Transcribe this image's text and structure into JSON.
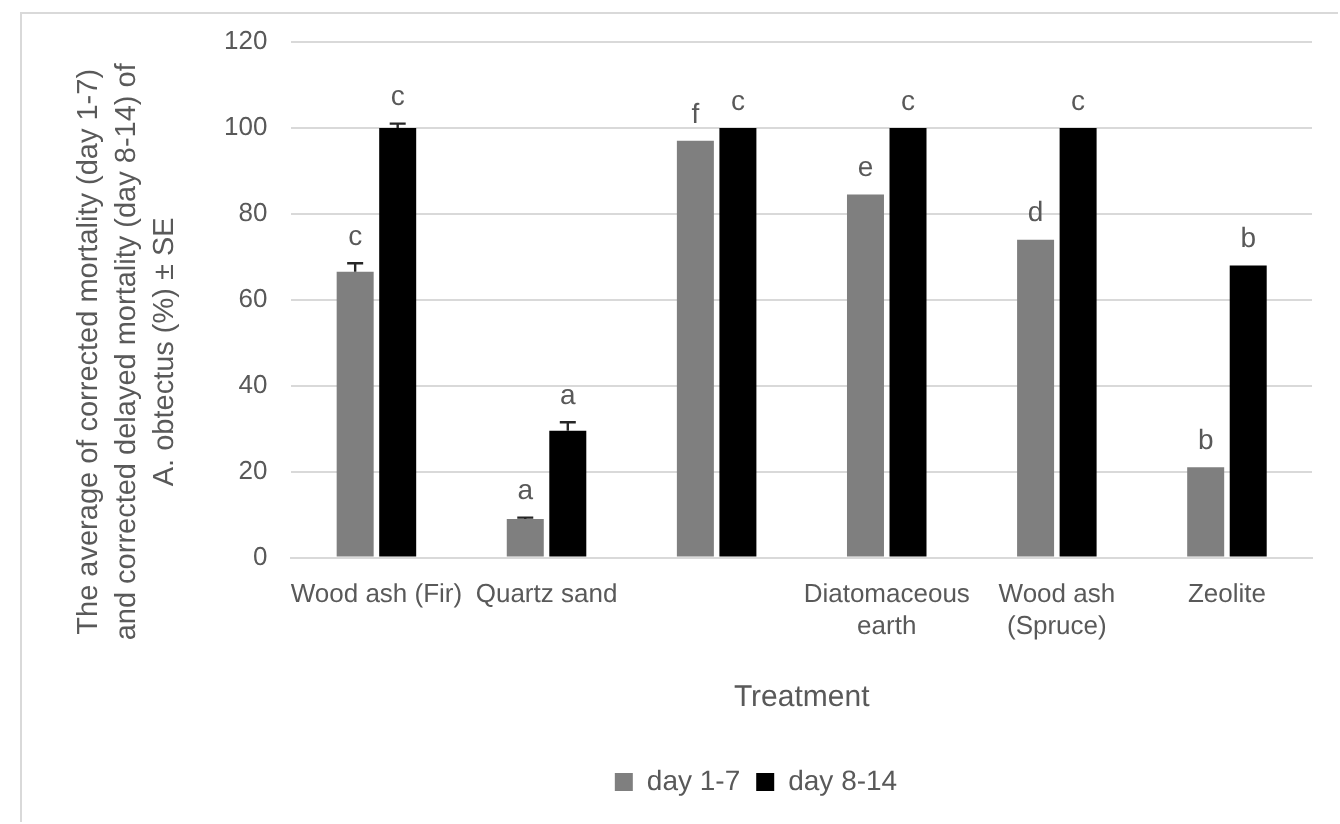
{
  "chart_data": {
    "type": "bar",
    "xlabel": "Treatment",
    "ylabel": "The average of corrected mortality (day 1-7) and corrected delayed mortality (day 8-14) of A. obtectus (%) ± SE",
    "categories": [
      "Wood ash (Fir)",
      "Quartz sand",
      null,
      "Diatomaceous earth",
      "Wood ash (Spruce)",
      "Zeolite"
    ],
    "series": [
      {
        "name": "day 1-7",
        "color": "#7f7f7f",
        "values": [
          66.5,
          9,
          97,
          84.5,
          74,
          21
        ],
        "errors": [
          [
            66.5,
            68.5
          ],
          [
            9,
            9.3
          ],
          null,
          null,
          null,
          null
        ],
        "value_labels": [
          "c",
          "a",
          "f",
          "e",
          "d",
          "b"
        ]
      },
      {
        "name": "day 8-14",
        "color": "#000000",
        "values": [
          100,
          29.5,
          100,
          100,
          100,
          68
        ],
        "errors": [
          [
            100,
            101
          ],
          [
            29.5,
            31.5
          ],
          null,
          null,
          null,
          null
        ],
        "value_labels": [
          "c",
          "a",
          "c",
          "c",
          "c",
          "b"
        ]
      }
    ],
    "ylim": [
      0,
      120
    ],
    "yticks": [
      0,
      20,
      40,
      60,
      80,
      100,
      120
    ],
    "grid": "y",
    "legend": "bottom"
  }
}
